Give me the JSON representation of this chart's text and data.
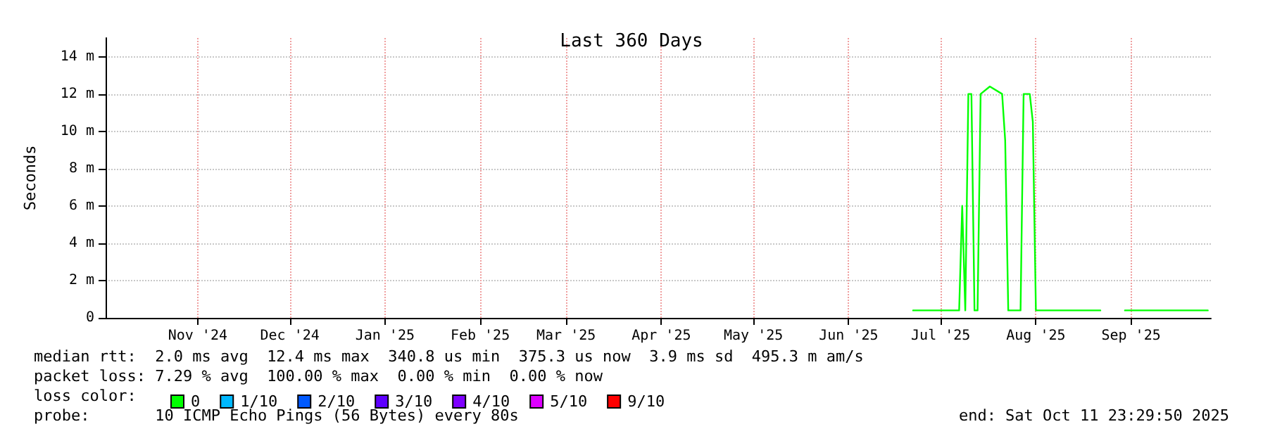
{
  "chart_data": {
    "type": "line",
    "title": "Last 360 Days",
    "ylabel": "Seconds",
    "x": [
      "2025-07-06",
      "2025-07-21",
      "2025-07-22",
      "2025-07-23",
      "2025-07-24",
      "2025-07-25",
      "2025-07-26",
      "2025-07-27",
      "2025-07-28",
      "2025-07-31",
      "2025-08-04",
      "2025-08-05",
      "2025-08-06",
      "2025-08-10",
      "2025-08-11",
      "2025-08-13",
      "2025-08-14",
      "2025-08-15",
      "2025-09-05",
      "2025-09-06",
      "2025-09-13",
      "2025-10-10"
    ],
    "series": [
      {
        "name": "0",
        "color": "#00ff00",
        "values": [
          0.4,
          0.4,
          6,
          0.4,
          12,
          12,
          0.4,
          0.4,
          12,
          12.4,
          12,
          9.5,
          0.4,
          0.4,
          12,
          12,
          10.5,
          0.4,
          0.4,
          null,
          0.4,
          0.4
        ]
      },
      {
        "name": "1/10",
        "color": "#00b8ff",
        "values": [
          null,
          null,
          null,
          null,
          null,
          null,
          null,
          null,
          null,
          null,
          null,
          null,
          null,
          null,
          null,
          null,
          null,
          null,
          null,
          null,
          null,
          null
        ]
      },
      {
        "name": "2/10",
        "color": "#0059ff",
        "values": [
          null,
          null,
          null,
          null,
          null,
          null,
          null,
          null,
          null,
          null,
          null,
          null,
          null,
          null,
          null,
          null,
          null,
          null,
          null,
          null,
          null,
          null
        ]
      },
      {
        "name": "3/10",
        "color": "#5e00ff",
        "values": [
          null,
          null,
          null,
          null,
          null,
          null,
          null,
          null,
          null,
          null,
          null,
          null,
          null,
          null,
          null,
          null,
          null,
          null,
          null,
          null,
          null,
          null
        ]
      },
      {
        "name": "4/10",
        "color": "#7e00ff",
        "values": [
          null,
          null,
          null,
          null,
          null,
          null,
          null,
          null,
          null,
          null,
          null,
          null,
          null,
          null,
          null,
          null,
          null,
          null,
          null,
          null,
          null,
          null
        ]
      },
      {
        "name": "5/10",
        "color": "#dd00ff",
        "values": [
          null,
          null,
          null,
          null,
          null,
          null,
          null,
          null,
          null,
          null,
          null,
          null,
          null,
          null,
          null,
          null,
          null,
          null,
          null,
          null,
          null,
          null
        ]
      },
      {
        "name": "9/10",
        "color": "#ff0000",
        "values": [
          null,
          null,
          null,
          null,
          null,
          null,
          null,
          null,
          null,
          null,
          null,
          null,
          null,
          null,
          null,
          null,
          null,
          null,
          null,
          null,
          null,
          null
        ]
      }
    ],
    "xlim": [
      "2024-10-16",
      "2025-10-11"
    ],
    "xticks": [
      {
        "value": "2024-11-15",
        "label": "Nov '24"
      },
      {
        "value": "2024-12-15",
        "label": "Dec '24"
      },
      {
        "value": "2025-01-15",
        "label": "Jan '25"
      },
      {
        "value": "2025-02-15",
        "label": "Feb '25"
      },
      {
        "value": "2025-03-15",
        "label": "Mar '25"
      },
      {
        "value": "2025-04-15",
        "label": "Apr '25"
      },
      {
        "value": "2025-05-15",
        "label": "May '25"
      },
      {
        "value": "2025-06-15",
        "label": "Jun '25"
      },
      {
        "value": "2025-07-15",
        "label": "Jul '25"
      },
      {
        "value": "2025-08-15",
        "label": "Aug '25"
      },
      {
        "value": "2025-09-15",
        "label": "Sep '25"
      }
    ],
    "ylim": [
      0,
      15
    ],
    "yticks": [
      0,
      {
        "value": 2,
        "label": "2 m"
      },
      {
        "value": 4,
        "label": "4 m"
      },
      {
        "value": 6,
        "label": "6 m"
      },
      {
        "value": 8,
        "label": "8 m"
      },
      {
        "value": 10,
        "label": "10 m"
      },
      {
        "value": 12,
        "label": "12 m"
      },
      {
        "value": 14,
        "label": "14 m"
      }
    ],
    "grid": true,
    "legend": "bottom left",
    "marker": "none",
    "line_style": "solid",
    "annotations": [
      "median rtt:  2.0 ms avg  12.4 ms max  340.8 us min  375.3 us now  3.9 ms sd  495.3 m am/s",
      "packet loss: 7.29 % avg  100.00 % max  0.00 % min  0.00 % now",
      "loss color:",
      "probe:       10 ICMP Echo Pings (56 Bytes) every 80s",
      "end: Sat Oct 11 23:29:50 2025"
    ]
  }
}
